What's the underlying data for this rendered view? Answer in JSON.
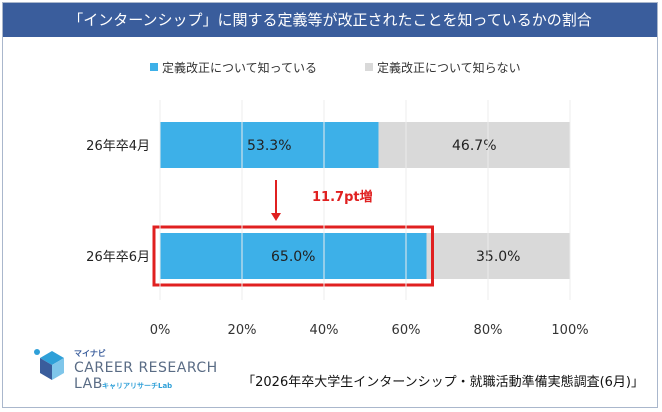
{
  "header": {
    "title": "「インターンシップ」に関する定義等が改正されたことを知っているかの割合",
    "title_bg": "#3a5d9c"
  },
  "chart_data": {
    "type": "bar",
    "orientation": "horizontal",
    "stacked": true,
    "percent": true,
    "categories": [
      "26年卒4月",
      "26年卒6月"
    ],
    "series": [
      {
        "name": "定義改正について知っている",
        "values": [
          53.3,
          65.0
        ],
        "labels": [
          "53.3%",
          "65.0%"
        ],
        "color": "#3db0e8"
      },
      {
        "name": "定義改正について知らない",
        "values": [
          46.7,
          35.0
        ],
        "labels": [
          "46.7%",
          "35.0%"
        ],
        "color": "#d9d9d9"
      }
    ],
    "xlim": [
      0,
      100
    ],
    "xticks": [
      "0%",
      "20%",
      "40%",
      "60%",
      "80%",
      "100%"
    ],
    "legend_position": "top",
    "highlight": {
      "category": "26年卒6月",
      "color": "#e02020"
    },
    "annotation": {
      "text": "11.7pt増",
      "color": "#e02020",
      "from": "26年卒4月",
      "to": "26年卒6月"
    }
  },
  "logo": {
    "small": "マイナビ",
    "line1": "CAREER RESEARCH",
    "line2": "LAB",
    "sub": "キャリアリサーチLab"
  },
  "source": "「2026年卒大学生インターンシップ・就職活動準備実態調査(6月)」"
}
